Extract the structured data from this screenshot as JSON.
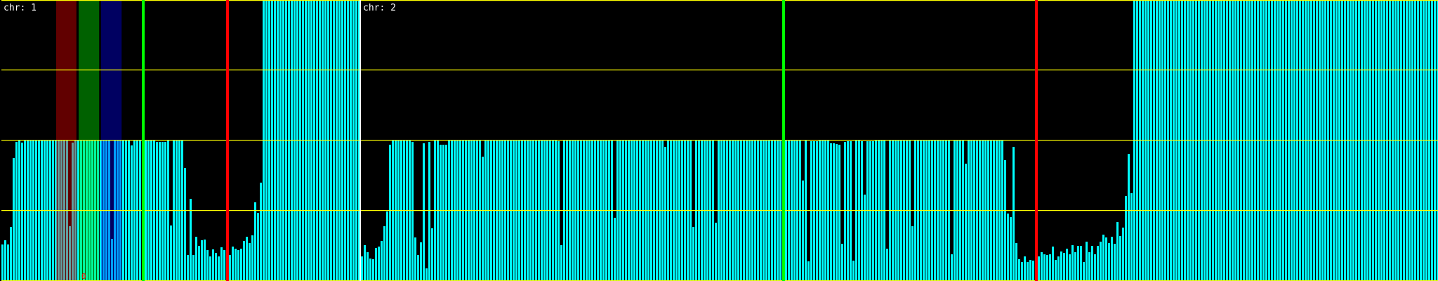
{
  "chart_data": {
    "type": "bar",
    "grid": true,
    "ylim": [
      0,
      4
    ],
    "gridlines_y": [
      0,
      1,
      2,
      3,
      4
    ],
    "colors": {
      "bar": "#00ffff",
      "grid": "#ffff00",
      "separator": "#ffffff",
      "green_marker": "#00ff00",
      "red_marker": "#ff0000"
    },
    "panels": [
      {
        "label": "chr: 1",
        "values": [
          0.52,
          0.58,
          0.52,
          0.77,
          1.75,
          1.98,
          2,
          1.97,
          2,
          2,
          2,
          2,
          2,
          2,
          2,
          2,
          2,
          2,
          2,
          2,
          2,
          2,
          2,
          2,
          0.78,
          1.97,
          2,
          2,
          2,
          2,
          2,
          2,
          2,
          2,
          2,
          2,
          2,
          2,
          2,
          0.6,
          2,
          2,
          2,
          2,
          2,
          2,
          1.93,
          2,
          2,
          2,
          2,
          2,
          2,
          2,
          2,
          1.98,
          1.98,
          1.98,
          1.98,
          2,
          0.79,
          2,
          2,
          2,
          2,
          1.61,
          0.37,
          1.17,
          0.37,
          0.63,
          0.5,
          0.58,
          0.59,
          0.44,
          0.35,
          0.45,
          0.4,
          0.35,
          0.48,
          0.44,
          0.4,
          0.37,
          0.49,
          0.46,
          0.44,
          0.46,
          0.57,
          0.63,
          0.54,
          0.65,
          1.12,
          0.97,
          1.4,
          4,
          4,
          4,
          4,
          4,
          4,
          4,
          4,
          4,
          4,
          4,
          4,
          4,
          4,
          4,
          4,
          4,
          4,
          4,
          4,
          4,
          4,
          4,
          4,
          4,
          4,
          4,
          4,
          4,
          4,
          4,
          4,
          4,
          4,
          4
        ],
        "markers": [
          {
            "bin": 50,
            "color": "#00ff00"
          },
          {
            "bin": 80,
            "color": "#ff0000"
          }
        ],
        "bands": [
          {
            "from": 19.5,
            "to": 26.7,
            "color": "#ff0000"
          },
          {
            "from": 27.5,
            "to": 34.8,
            "color": "#00ff00"
          },
          {
            "from": 35.5,
            "to": 42.8,
            "color": "#0000ff"
          }
        ],
        "annotations": [
          {
            "text": "0",
            "bin": 28,
            "color": "#ff0000"
          }
        ]
      },
      {
        "label": "chr: 2",
        "values": [
          0.35,
          0.51,
          0.41,
          0.32,
          0.31,
          0.47,
          0.49,
          0.57,
          0.78,
          0.99,
          1.94,
          2,
          2,
          2,
          2,
          2,
          2,
          2,
          1.98,
          0.62,
          0.37,
          0.55,
          1.96,
          0.18,
          1.98,
          0.75,
          2,
          2,
          1.94,
          1.94,
          1.94,
          2,
          2,
          2,
          2,
          2,
          2,
          2,
          2,
          2,
          2,
          2,
          2,
          1.77,
          2,
          2,
          2,
          2,
          2,
          2,
          2,
          2,
          2,
          2,
          2,
          2,
          2,
          2,
          2,
          2,
          2,
          2,
          2,
          2,
          2,
          2,
          2,
          2,
          2,
          2,
          1.99,
          0.51,
          2,
          2,
          2,
          2,
          2,
          2,
          2,
          2,
          2,
          2,
          2,
          2,
          2,
          2,
          2,
          2,
          2,
          2,
          0.9,
          2,
          2,
          2,
          2,
          2,
          2,
          2,
          2,
          2,
          2,
          2,
          2,
          2,
          2,
          2,
          2,
          2,
          1.91,
          2,
          2,
          2,
          2,
          2,
          2,
          2,
          2,
          2,
          0.77,
          2,
          2,
          2,
          2,
          2,
          2,
          2,
          0.83,
          2,
          2,
          2,
          2,
          2,
          2,
          2,
          2,
          2,
          2,
          2,
          2,
          2,
          2,
          2,
          2,
          2,
          2,
          2,
          2,
          2,
          2,
          2,
          2,
          2,
          2,
          2,
          2,
          2,
          2,
          1.43,
          2,
          0.28,
          1.99,
          1.99,
          1.99,
          2,
          2,
          2,
          2,
          1.96,
          1.96,
          1.95,
          1.94,
          0.53,
          1.98,
          1.99,
          1.99,
          0.29,
          2,
          2,
          1.99,
          1.23,
          1.99,
          1.99,
          1.99,
          2,
          2,
          2,
          2,
          0.46,
          2,
          2,
          2,
          2,
          2,
          2,
          2,
          2,
          0.78,
          2,
          2,
          2,
          2,
          2,
          2,
          2,
          2,
          2,
          2,
          2,
          2,
          2,
          0.38,
          2,
          2,
          2,
          2,
          1.67,
          2,
          2,
          2,
          2,
          2,
          2,
          2,
          2,
          2,
          2,
          2,
          2,
          2,
          1.72,
          0.96,
          0.91,
          1.91,
          0.54,
          0.31,
          0.27,
          0.35,
          0.27,
          0.3,
          0.29,
          0.62,
          0.35,
          0.41,
          0.38,
          0.37,
          0.38,
          0.49,
          0.3,
          0.35,
          0.42,
          0.4,
          0.46,
          0.38,
          0.51,
          0.41,
          0.5,
          0.5,
          0.27,
          0.56,
          0.41,
          0.5,
          0.38,
          0.5,
          0.56,
          0.66,
          0.62,
          0.54,
          0.63,
          0.53,
          0.84,
          0.64,
          0.76,
          1.21,
          1.81,
          1.25,
          4,
          4,
          4,
          4,
          4,
          4,
          4,
          4,
          4,
          4,
          4,
          4,
          4,
          4,
          4,
          4,
          4,
          4,
          4,
          4,
          4,
          4,
          4,
          4,
          4,
          4,
          4,
          4,
          4,
          4,
          4,
          4,
          4,
          4,
          4,
          4,
          4,
          4,
          4,
          4,
          4,
          4,
          4,
          4,
          4,
          4,
          4,
          4,
          4,
          4,
          4,
          4,
          4,
          4,
          4,
          4,
          4,
          4,
          4,
          4,
          4,
          4,
          4,
          4,
          4,
          4,
          4,
          4,
          4,
          4,
          4,
          4,
          4,
          4,
          4,
          4,
          4,
          4,
          4,
          4,
          4,
          4,
          4,
          4,
          4,
          4,
          4,
          4,
          4,
          4,
          4,
          4,
          4,
          4,
          4,
          4,
          4,
          4,
          4,
          4,
          4,
          4,
          4,
          4,
          4,
          4,
          4,
          4,
          4
        ],
        "markers": [
          {
            "bin": 150,
            "color": "#00ff00"
          },
          {
            "bin": 240,
            "color": "#ff0000"
          }
        ],
        "bands": [],
        "annotations": []
      }
    ]
  }
}
